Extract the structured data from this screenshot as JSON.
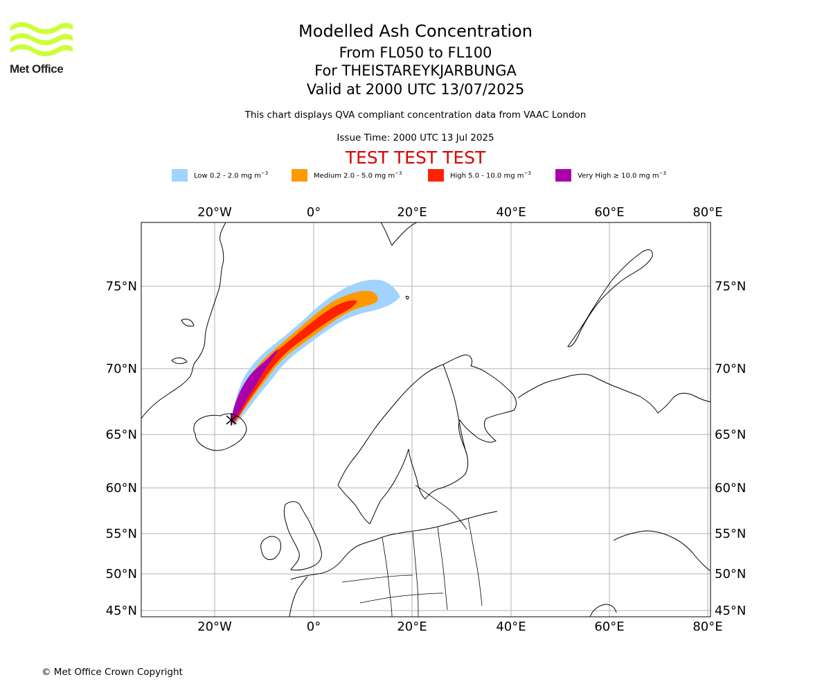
{
  "logo": {
    "text": "Met Office",
    "accent_color": "#ccff33"
  },
  "title": {
    "line1": "Modelled Ash Concentration",
    "line2": "From FL050 to FL100",
    "line3": "For THEISTAREYKJARBUNGA",
    "line4": "Valid at 2000 UTC 13/07/2025"
  },
  "subtitle": "This chart displays QVA compliant concentration data from VAAC London",
  "issue_time": "Issue Time: 2000 UTC 13 Jul 2025",
  "test_banner": "TEST TEST TEST",
  "legend": [
    {
      "label": "Low 0.2 - 2.0 mg m",
      "color": "#a0d4ff"
    },
    {
      "label": "Medium 2.0 - 5.0 mg m",
      "color": "#ff9900"
    },
    {
      "label": "High 5.0 - 10.0 mg m",
      "color": "#ff2200"
    },
    {
      "label": "Very High ≥ 10.0 mg m",
      "color": "#aa00aa"
    }
  ],
  "legend_unit_exp": "−3",
  "map": {
    "lon_ticks": [
      "20°W",
      "0°",
      "20°E",
      "40°E",
      "60°E",
      "80°E"
    ],
    "lat_ticks": [
      "75°N",
      "70°N",
      "65°N",
      "60°N",
      "55°N",
      "50°N",
      "45°N"
    ],
    "grid": true
  },
  "copyright": "© Met Office Crown Copyright"
}
